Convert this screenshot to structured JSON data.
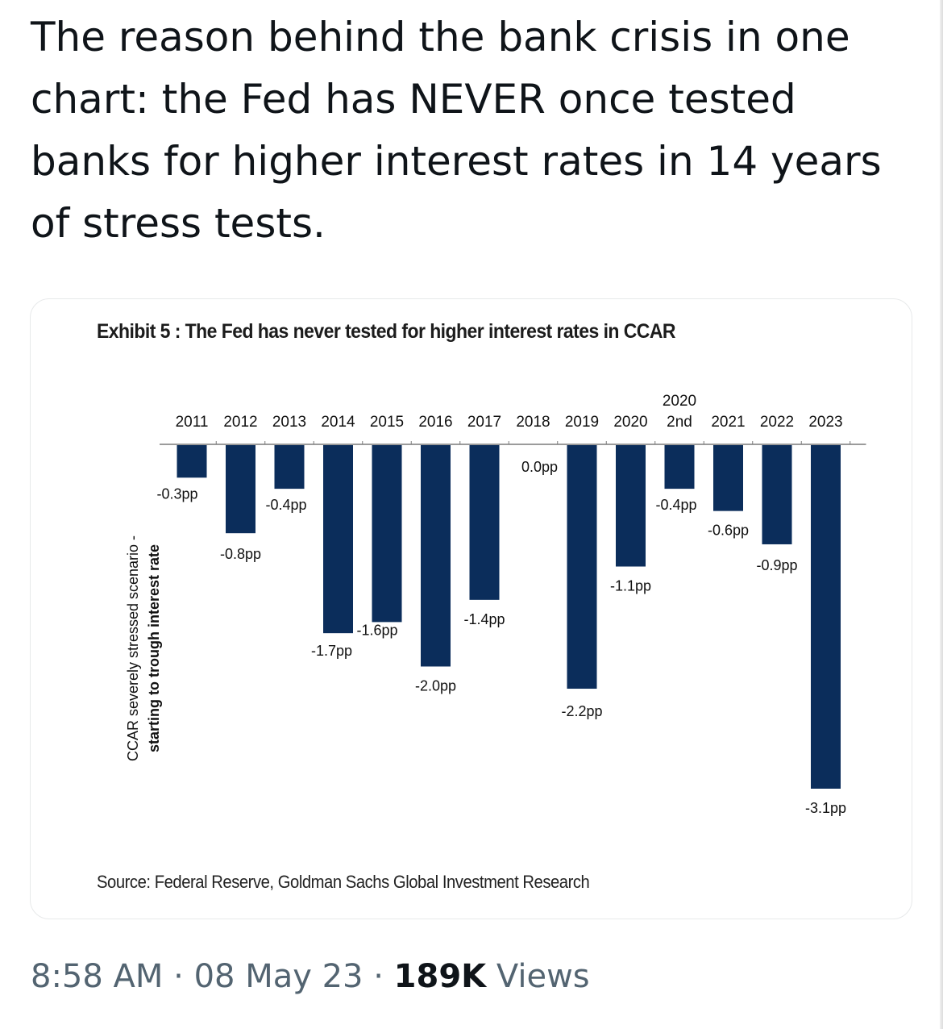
{
  "tweet": {
    "text": "The reason behind the bank crisis in one chart: the Fed has NEVER once tested banks for higher interest rates in 14 years of stress tests.",
    "time": "8:58 AM",
    "date": "08 May 23",
    "separator": "·",
    "views_count": "189K",
    "views_label": "Views"
  },
  "exhibit": {
    "title": "Exhibit 5 : The Fed has never tested for higher interest rates in CCAR",
    "source": "Source: Federal Reserve, Goldman Sachs Global Investment Research"
  },
  "chart_data": {
    "type": "bar",
    "title": "Exhibit 5 : The Fed has never tested for higher interest rates in CCAR",
    "ylabel_lines": [
      "CCAR severely stressed scenario -",
      "starting to trough interest rate"
    ],
    "xaxis_position": "top",
    "grid": false,
    "legend": "none",
    "bar_color": "#0b2d5b",
    "ylim": [
      -3.1,
      0
    ],
    "categories": [
      "2011",
      "2012",
      "2013",
      "2014",
      "2015",
      "2016",
      "2017",
      "2018",
      "2019",
      "2020",
      "2020 2nd",
      "2021",
      "2022",
      "2023"
    ],
    "category_labels": [
      [
        "2011"
      ],
      [
        "2012"
      ],
      [
        "2013"
      ],
      [
        "2014"
      ],
      [
        "2015"
      ],
      [
        "2016"
      ],
      [
        "2017"
      ],
      [
        "2018"
      ],
      [
        "2019"
      ],
      [
        "2020"
      ],
      [
        "2020",
        "2nd"
      ],
      [
        "2021"
      ],
      [
        "2022"
      ],
      [
        "2023"
      ]
    ],
    "values": [
      -0.3,
      -0.8,
      -0.4,
      -1.7,
      -1.6,
      -2.0,
      -1.4,
      0.0,
      -2.2,
      -1.1,
      -0.4,
      -0.6,
      -0.9,
      -3.1
    ],
    "data_labels": [
      "-0.3pp",
      "-0.8pp",
      "-0.4pp",
      "-1.7pp",
      "-1.6pp",
      "-2.0pp",
      "-1.4pp",
      "0.0pp",
      "-2.2pp",
      "-1.1pp",
      "-0.4pp",
      "-0.6pp",
      "-0.9pp",
      "-3.1pp"
    ]
  }
}
